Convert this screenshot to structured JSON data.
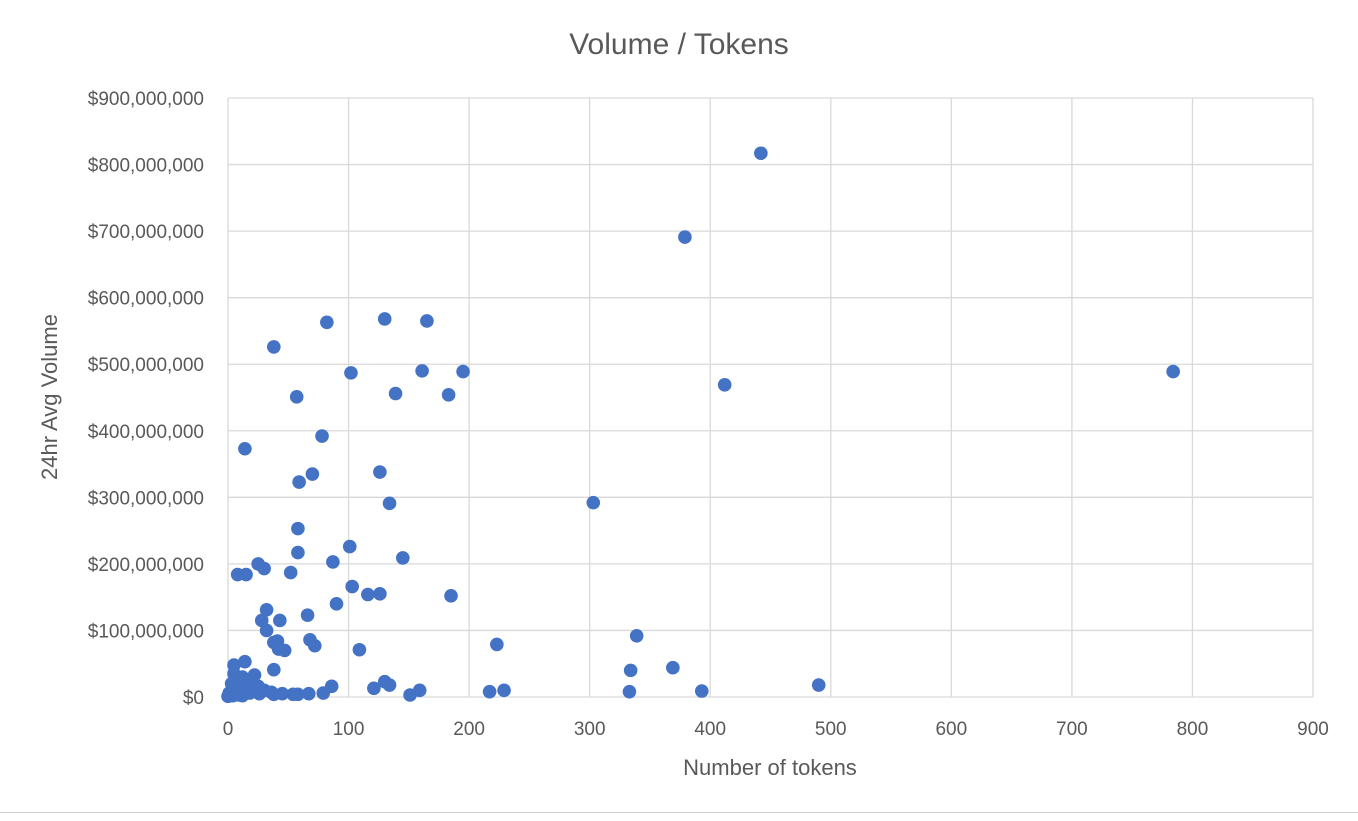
{
  "chart_data": {
    "type": "scatter",
    "title": "Volume / Tokens",
    "xlabel": "Number of tokens",
    "ylabel": "24hr Avg Volume",
    "xlim": [
      0,
      900
    ],
    "ylim": [
      0,
      900000000
    ],
    "x_ticks": [
      0,
      100,
      200,
      300,
      400,
      500,
      600,
      700,
      800,
      900
    ],
    "x_tick_labels": [
      "0",
      "100",
      "200",
      "300",
      "400",
      "500",
      "600",
      "700",
      "800",
      "900"
    ],
    "y_ticks": [
      0,
      100000000,
      200000000,
      300000000,
      400000000,
      500000000,
      600000000,
      700000000,
      800000000,
      900000000
    ],
    "y_tick_labels": [
      "$0",
      "$100,000,000",
      "$200,000,000",
      "$300,000,000",
      "$400,000,000",
      "$500,000,000",
      "$600,000,000",
      "$700,000,000",
      "$800,000,000",
      "$900,000,000"
    ],
    "grid": true,
    "marker_color": "#4472c4",
    "points": [
      [
        442,
        817000000
      ],
      [
        379,
        691000000
      ],
      [
        784,
        489000000
      ],
      [
        412,
        469000000
      ],
      [
        303,
        292000000
      ],
      [
        339,
        92000000
      ],
      [
        369,
        44000000
      ],
      [
        334,
        40000000
      ],
      [
        490,
        18000000
      ],
      [
        393,
        9000000
      ],
      [
        333,
        8000000
      ],
      [
        223,
        79000000
      ],
      [
        229,
        10000000
      ],
      [
        217,
        8000000
      ],
      [
        130,
        568000000
      ],
      [
        165,
        565000000
      ],
      [
        82,
        563000000
      ],
      [
        38,
        526000000
      ],
      [
        161,
        490000000
      ],
      [
        195,
        489000000
      ],
      [
        102,
        487000000
      ],
      [
        139,
        456000000
      ],
      [
        183,
        454000000
      ],
      [
        57,
        451000000
      ],
      [
        78,
        392000000
      ],
      [
        14,
        373000000
      ],
      [
        126,
        338000000
      ],
      [
        70,
        335000000
      ],
      [
        59,
        323000000
      ],
      [
        134,
        291000000
      ],
      [
        58,
        253000000
      ],
      [
        101,
        226000000
      ],
      [
        58,
        217000000
      ],
      [
        145,
        209000000
      ],
      [
        87,
        203000000
      ],
      [
        25,
        200000000
      ],
      [
        30,
        193000000
      ],
      [
        52,
        187000000
      ],
      [
        8,
        184000000
      ],
      [
        15,
        184000000
      ],
      [
        103,
        166000000
      ],
      [
        116,
        154000000
      ],
      [
        126,
        155000000
      ],
      [
        185,
        152000000
      ],
      [
        90,
        140000000
      ],
      [
        32,
        131000000
      ],
      [
        66,
        123000000
      ],
      [
        43,
        115000000
      ],
      [
        28,
        115000000
      ],
      [
        32,
        100000000
      ],
      [
        68,
        86000000
      ],
      [
        41,
        84000000
      ],
      [
        38,
        82000000
      ],
      [
        72,
        77000000
      ],
      [
        42,
        72000000
      ],
      [
        47,
        70000000
      ],
      [
        109,
        71000000
      ],
      [
        14,
        53000000
      ],
      [
        5,
        48000000
      ],
      [
        38,
        41000000
      ],
      [
        5,
        35000000
      ],
      [
        22,
        33000000
      ],
      [
        12,
        30000000
      ],
      [
        9,
        25000000
      ],
      [
        3,
        20000000
      ],
      [
        17,
        18000000
      ],
      [
        25,
        16000000
      ],
      [
        130,
        23000000
      ],
      [
        134,
        18000000
      ],
      [
        86,
        16000000
      ],
      [
        121,
        13000000
      ],
      [
        159,
        10000000
      ],
      [
        6,
        12000000
      ],
      [
        11,
        10000000
      ],
      [
        20,
        8000000
      ],
      [
        30,
        10000000
      ],
      [
        36,
        7000000
      ],
      [
        45,
        5000000
      ],
      [
        54,
        4000000
      ],
      [
        67,
        5000000
      ],
      [
        79,
        6000000
      ],
      [
        58,
        4000000
      ],
      [
        38,
        4000000
      ],
      [
        151,
        3000000
      ],
      [
        1,
        6000000
      ],
      [
        2,
        3000000
      ],
      [
        0,
        1000000
      ],
      [
        4,
        2000000
      ],
      [
        9,
        3000000
      ],
      [
        12,
        2000000
      ],
      [
        18,
        6000000
      ],
      [
        26,
        5000000
      ]
    ]
  }
}
